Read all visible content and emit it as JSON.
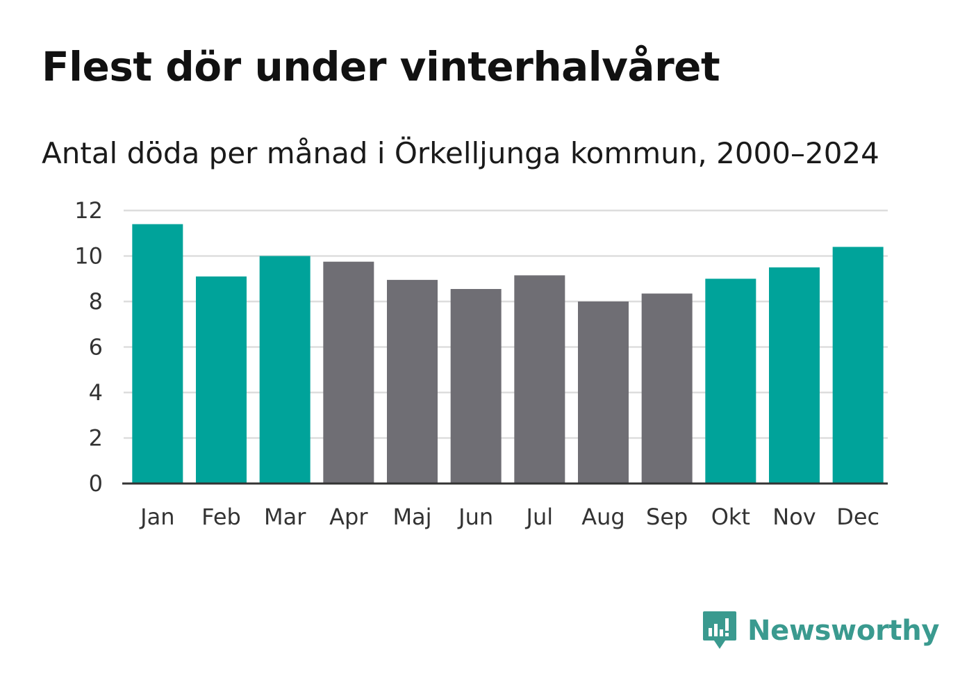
{
  "header": {
    "title": "Flest dör under vinterhalvåret",
    "subtitle": "Antal döda per månad i Örkelljunga kommun, 2000–2024"
  },
  "brand": {
    "name": "Newsworthy",
    "icon": "newsworthy-logo-icon",
    "color": "#3a9a8f"
  },
  "colors": {
    "highlight": "#00a39a",
    "normal": "#6f6e74",
    "grid": "#dddddd",
    "axis": "#333333"
  },
  "chart_data": {
    "type": "bar",
    "title": "Flest dör under vinterhalvåret",
    "subtitle": "Antal döda per månad i Örkelljunga kommun, 2000–2024",
    "xlabel": "",
    "ylabel": "",
    "categories": [
      "Jan",
      "Feb",
      "Mar",
      "Apr",
      "Maj",
      "Jun",
      "Jul",
      "Aug",
      "Sep",
      "Okt",
      "Nov",
      "Dec"
    ],
    "values": [
      11.4,
      9.1,
      10.0,
      9.75,
      8.95,
      8.55,
      9.15,
      8.0,
      8.35,
      9.0,
      9.5,
      10.4
    ],
    "highlighted": [
      true,
      true,
      true,
      false,
      false,
      false,
      false,
      false,
      false,
      true,
      true,
      true
    ],
    "ylim": [
      0,
      12
    ],
    "yticks": [
      0,
      2,
      4,
      6,
      8,
      10,
      12
    ],
    "grid": true,
    "legend": "none"
  }
}
